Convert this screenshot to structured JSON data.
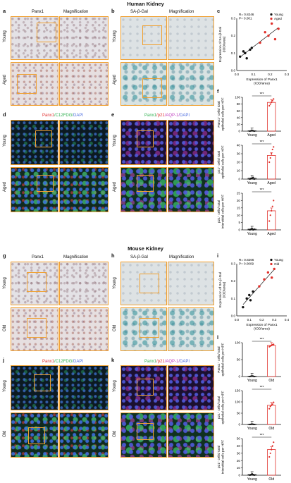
{
  "sections": {
    "human": "Human Kidney",
    "mouse": "Mouse Kidney"
  },
  "panels": {
    "a": "a",
    "b": "b",
    "c": "c",
    "d": "d",
    "e": "e",
    "f": "f",
    "g": "g",
    "h": "h",
    "i": "i",
    "j": "j",
    "k": "k",
    "l": "l"
  },
  "captions": {
    "panx1": "Panx1",
    "magnification": "Magnification",
    "sabgal": "SA-β-Gal",
    "d_panx1": "Panx1",
    "d_c12": "/C12FDG/",
    "d_dapi": "DAPI",
    "e_panx1": "Panx1",
    "e_p21": "/p21",
    "e_aqp": "/AQP-1/",
    "e_dapi": "DAPI"
  },
  "rows": {
    "young": "Young",
    "aged": "Aged",
    "old": "Old"
  },
  "colors": {
    "young": "#111111",
    "aged": "#e0302b",
    "accent": "#f0a030"
  },
  "chart_data": [
    {
      "id": "c",
      "type": "scatter",
      "annotation": [
        "R= 0.8246",
        "P= 0.001"
      ],
      "xlabel": [
        "Expression of Panx1",
        "(IOD/area)"
      ],
      "ylabel": [
        "Expression of SA-β-Gal",
        "(IOD/area)"
      ],
      "xticks": [
        "0.0",
        "0.1",
        "0.2",
        "0.3"
      ],
      "yticks": [
        "0.0",
        "0.1",
        "0.2",
        "0.3"
      ],
      "xlim": [
        0,
        0.3
      ],
      "ylim": [
        0,
        0.3
      ],
      "series": [
        {
          "name": "Young",
          "color": "#111111",
          "x": [
            0.02,
            0.04,
            0.05,
            0.06,
            0.08,
            0.09
          ],
          "y": [
            0.08,
            0.11,
            0.1,
            0.07,
            0.12,
            0.13
          ]
        },
        {
          "name": "Aged",
          "color": "#e0302b",
          "x": [
            0.14,
            0.17,
            0.19,
            0.21,
            0.23,
            0.25
          ],
          "y": [
            0.16,
            0.22,
            0.2,
            0.27,
            0.18,
            0.24
          ]
        }
      ]
    },
    {
      "id": "f1",
      "type": "bar",
      "categories": [
        "Young",
        "Aged"
      ],
      "values": [
        1,
        85
      ],
      "ylim": [
        0,
        100
      ],
      "yticks": [
        "0",
        "20",
        "40",
        "60",
        "80",
        "100"
      ],
      "ylabel": [
        "Panx1⁺ cells/ total",
        "epithelial cells per HPF"
      ],
      "sig": "***",
      "points": [
        [
          0,
          1,
          2,
          1,
          0
        ],
        [
          75,
          80,
          85,
          90,
          95
        ]
      ]
    },
    {
      "id": "f2",
      "type": "bar",
      "categories": [
        "Young",
        "Aged"
      ],
      "values": [
        1,
        28
      ],
      "ylim": [
        0,
        40
      ],
      "yticks": [
        "0",
        "10",
        "20",
        "30",
        "40"
      ],
      "ylabel": [
        "p21⁺ cells/ total",
        "epithelial cells per HPF"
      ],
      "sig": "***",
      "points": [
        [
          0,
          1,
          1,
          2,
          0
        ],
        [
          20,
          25,
          30,
          35,
          38
        ]
      ]
    },
    {
      "id": "f3",
      "type": "bar",
      "categories": [
        "Young",
        "Aged"
      ],
      "values": [
        0.5,
        13
      ],
      "ylim": [
        0,
        25
      ],
      "yticks": [
        "0",
        "5",
        "10",
        "15",
        "20",
        "25"
      ],
      "ylabel": [
        "p21⁺ cells/ total",
        "interstitial cells per HPF"
      ],
      "sig": "***",
      "points": [
        [
          0,
          0.5,
          1,
          0,
          0.5
        ],
        [
          6,
          10,
          13,
          16,
          20
        ]
      ]
    },
    {
      "id": "i",
      "type": "scatter",
      "annotation": [
        "R= 0.8266",
        "P= 0.0009"
      ],
      "xlabel": [
        "Expression of Panx1",
        "(IOD/area)"
      ],
      "ylabel": [
        "Expression of SA-β-Gal",
        "(IOD/area)"
      ],
      "xticks": [
        "0.0",
        "0.1",
        "0.2",
        "0.3",
        "0.4"
      ],
      "yticks": [
        "0.0",
        "0.1",
        "0.2",
        "0.3"
      ],
      "xlim": [
        0,
        0.4
      ],
      "ylim": [
        0,
        0.3
      ],
      "series": [
        {
          "name": "Young",
          "color": "#111111",
          "x": [
            0.05,
            0.08,
            0.1,
            0.11,
            0.13
          ],
          "y": [
            0.05,
            0.1,
            0.12,
            0.09,
            0.14
          ]
        },
        {
          "name": "Old",
          "color": "#e0302b",
          "x": [
            0.18,
            0.22,
            0.25,
            0.28,
            0.3
          ],
          "y": [
            0.17,
            0.21,
            0.25,
            0.22,
            0.27
          ]
        }
      ]
    },
    {
      "id": "l1",
      "type": "bar",
      "categories": [
        "Young",
        "Old"
      ],
      "values": [
        1,
        92
      ],
      "ylim": [
        0,
        100
      ],
      "yticks": [
        "0",
        "50",
        "100"
      ],
      "ylabel": [
        "Panx1⁺ cells/ total",
        "epithelial cells per HPF"
      ],
      "sig": "***",
      "points": [
        [
          0,
          1,
          2,
          1,
          0
        ],
        [
          88,
          90,
          92,
          94,
          95
        ]
      ]
    },
    {
      "id": "l2",
      "type": "bar",
      "categories": [
        "Young",
        "Old"
      ],
      "values": [
        1,
        85
      ],
      "ylim": [
        0,
        150
      ],
      "yticks": [
        "0",
        "50",
        "100",
        "150"
      ],
      "ylabel": [
        "p21⁺ cells/ total",
        "epithelial cells per HPF"
      ],
      "sig": "***",
      "points": [
        [
          0,
          1,
          2,
          1,
          0
        ],
        [
          70,
          80,
          85,
          90,
          98
        ]
      ]
    },
    {
      "id": "l3",
      "type": "bar",
      "categories": [
        "Young",
        "Old"
      ],
      "values": [
        1,
        35
      ],
      "ylim": [
        0,
        50
      ],
      "yticks": [
        "0",
        "10",
        "20",
        "30",
        "40",
        "50"
      ],
      "ylabel": [
        "p21⁺ cells/ total",
        "interstitial cells per HPF"
      ],
      "sig": "***",
      "points": [
        [
          0,
          1,
          2,
          1,
          0
        ],
        [
          25,
          30,
          35,
          40,
          45
        ]
      ]
    }
  ]
}
